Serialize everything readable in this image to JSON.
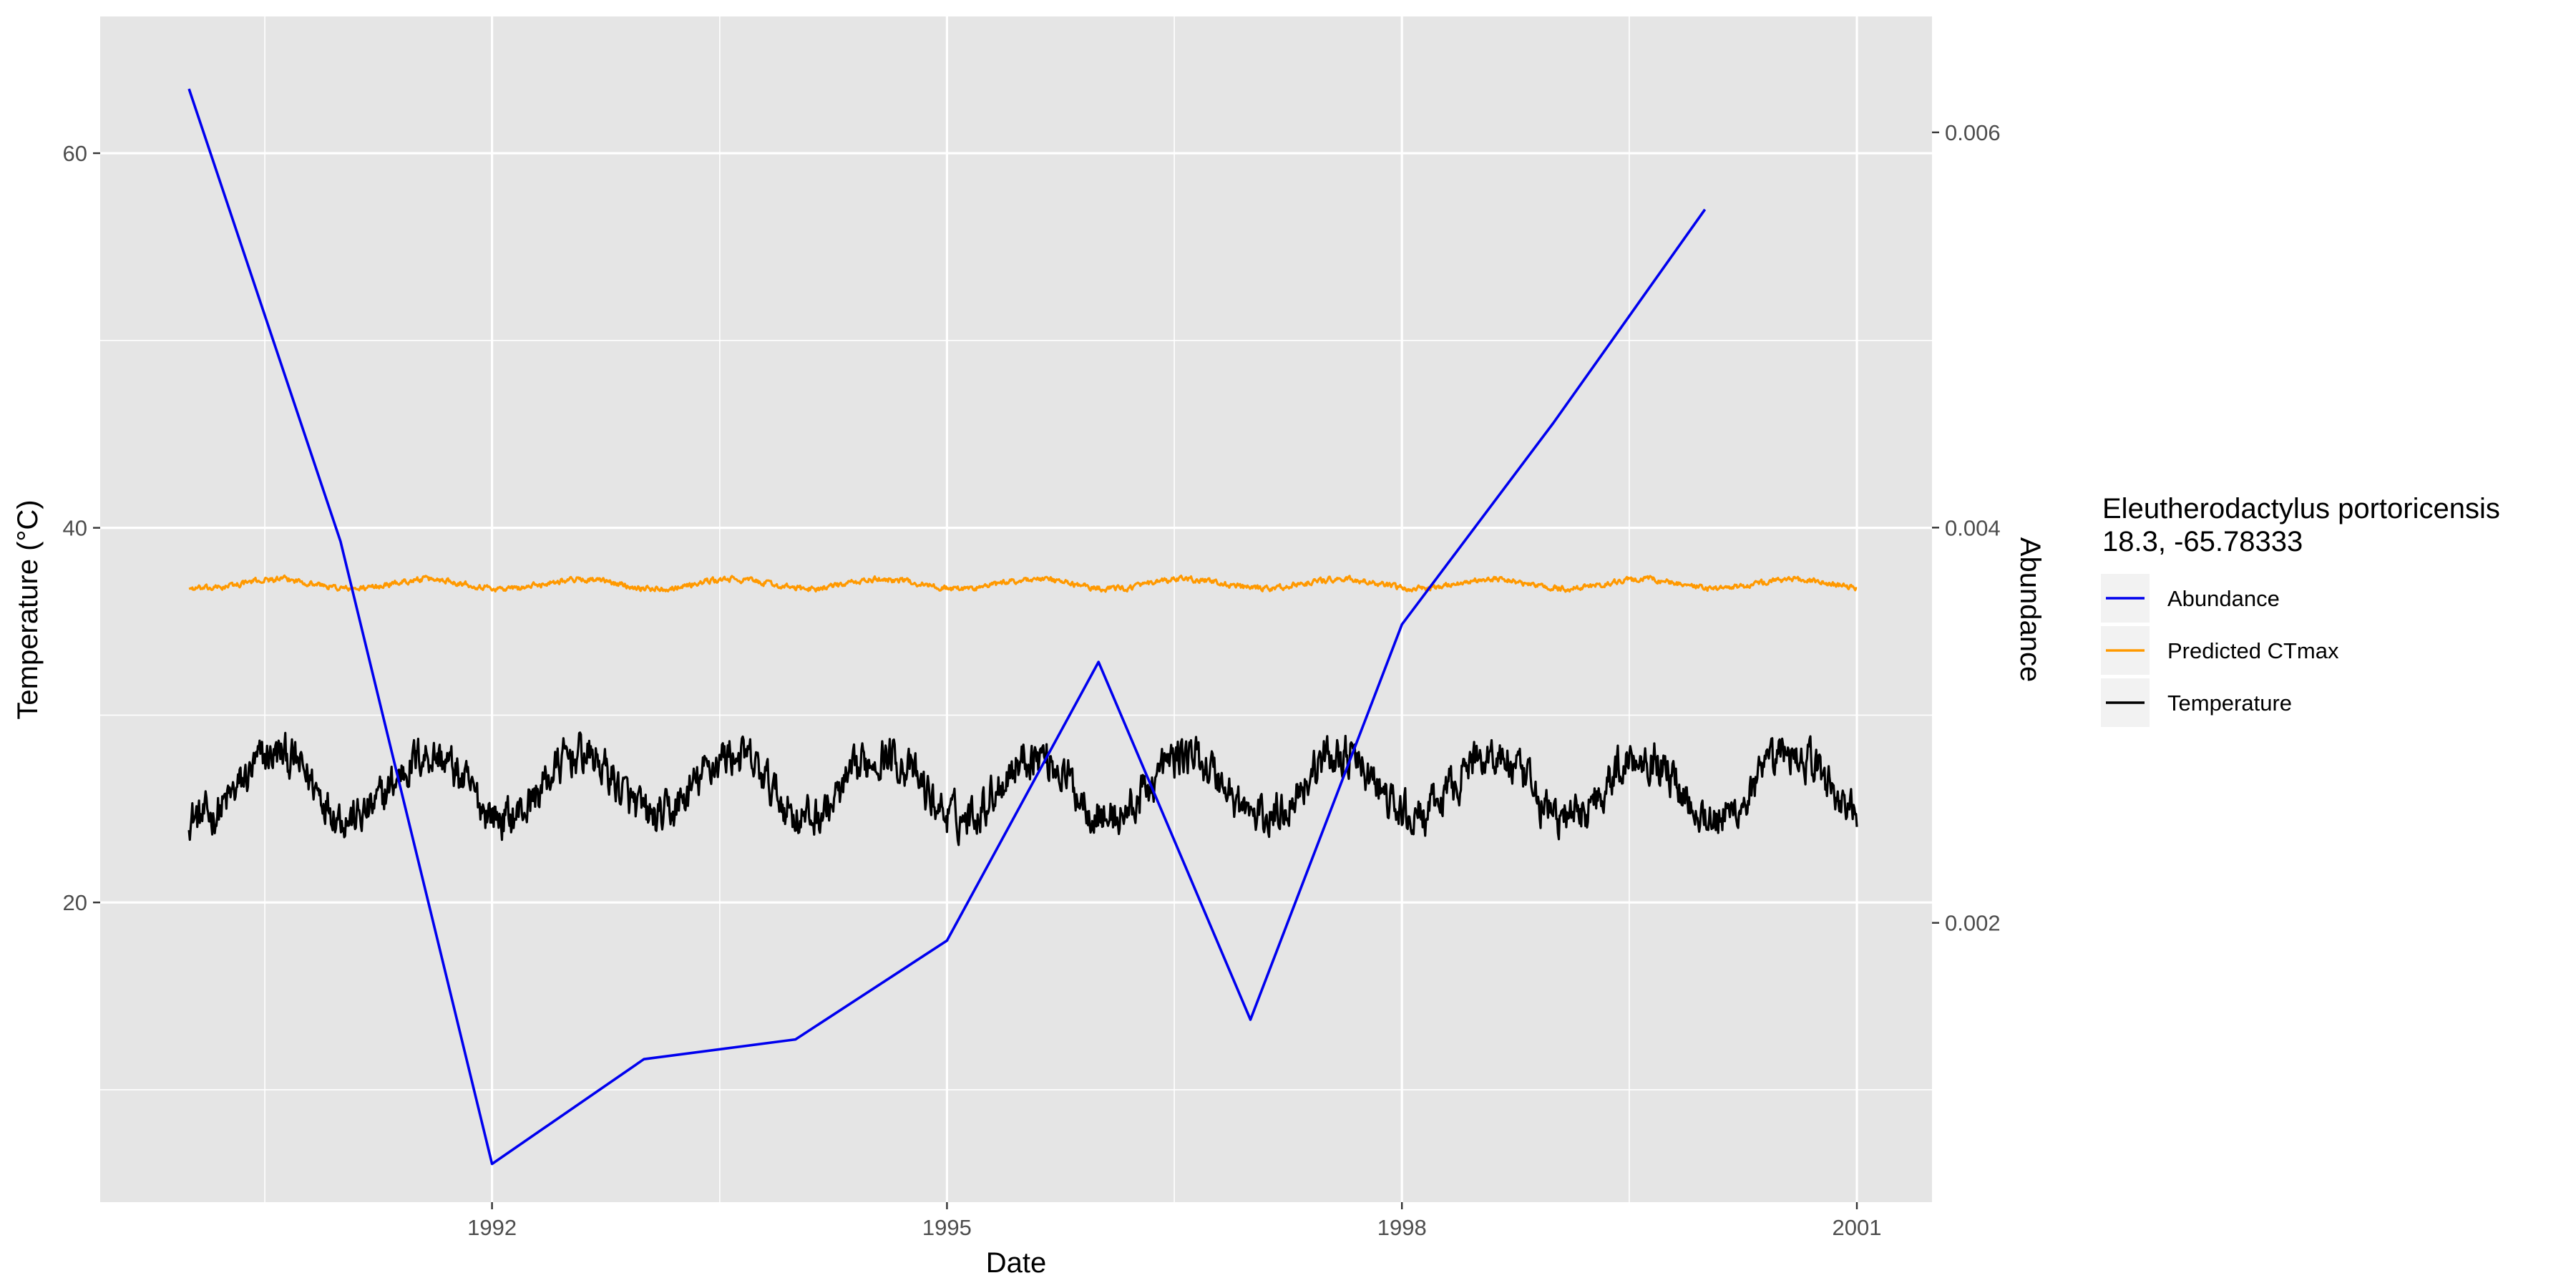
{
  "chart_data": {
    "type": "line",
    "xlabel": "Date",
    "ylabel": "Temperature (°C)",
    "y2label": "Abundance",
    "x_ticks": [
      "1992",
      "1995",
      "1998",
      "2001"
    ],
    "y_ticks": [
      20,
      40,
      60
    ],
    "y2_ticks": [
      "0.002",
      "0.004",
      "0.006"
    ],
    "xlim": [
      "1989-06-01",
      "2001-07-01"
    ],
    "ylim": [
      4.0,
      67.3
    ],
    "y2lim": [
      0.0005867,
      0.0065865
    ],
    "grid": true,
    "legend": {
      "title_line1": "Eleutherodactylus portoricensis",
      "title_line2": "18.3, -65.78333",
      "position": "right",
      "items": [
        "Abundance",
        "Predicted CTmax",
        "Temperature"
      ]
    },
    "colors": {
      "abundance": "#0000ee",
      "ctmax": "#ff9900",
      "temperature": "#000000",
      "panel": "#e5e5e5",
      "grid": "#ffffff",
      "y2_title": "#0000ff"
    },
    "series": [
      {
        "name": "Abundance",
        "axis": "right",
        "x": [
          "1990-01-01",
          "1991-01-01",
          "1992-01-01",
          "1993-01-01",
          "1994-01-01",
          "1995-01-01",
          "1996-01-01",
          "1997-01-01",
          "1998-01-01",
          "1999-01-01",
          "2000-01-01"
        ],
        "values": [
          0.00622,
          0.00393,
          0.00078,
          0.00131,
          0.00141,
          0.00191,
          0.00332,
          0.00151,
          0.00351,
          0.00453,
          0.00561
        ]
      },
      {
        "name": "Predicted CTmax",
        "axis": "left",
        "kind": "seasonal",
        "start": "1990-01-01",
        "end": "2001-01-01",
        "mean": 37.0,
        "amplitude": 0.25,
        "noise": 0.12,
        "peak_month": 8
      },
      {
        "name": "Temperature",
        "axis": "left",
        "kind": "seasonal",
        "start": "1990-01-01",
        "end": "2001-01-01",
        "mean": 26.2,
        "amplitude": 1.7,
        "noise": 0.9,
        "peak_month": 8
      }
    ]
  }
}
